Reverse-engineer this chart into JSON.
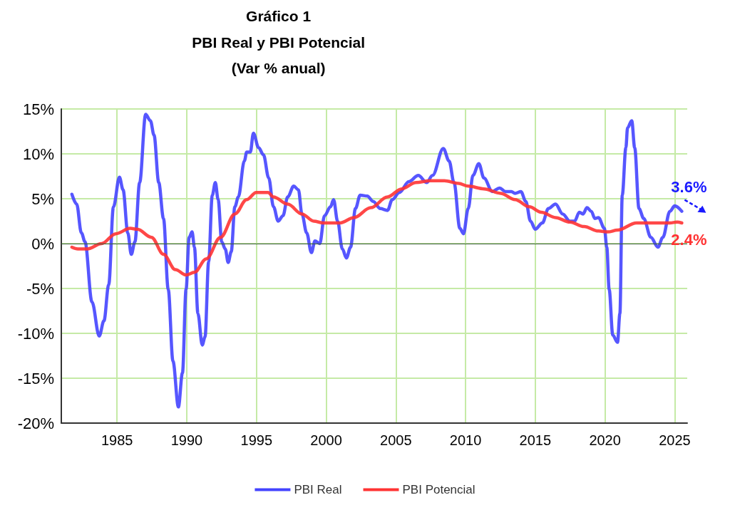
{
  "chart_data": {
    "type": "line",
    "title": "Gráfico 1",
    "subtitle": "PBI Real y PBI Potencial\n(Var % anual)",
    "series": [
      {
        "name": "PBI Real",
        "color": "#4444ff",
        "x": [
          1981.76,
          1982.1,
          1982.44,
          1982.7,
          1983.2,
          1983.72,
          1984.06,
          1984.4,
          1984.74,
          1985.17,
          1985.43,
          1985.77,
          1986.02,
          1986.28,
          1986.62,
          1987.05,
          1987.39,
          1987.65,
          1987.99,
          1988.33,
          1988.67,
          1989.01,
          1989.4,
          1989.69,
          1989.95,
          1990.17,
          1990.38,
          1990.55,
          1990.8,
          1991.11,
          1991.31,
          1991.57,
          1991.83,
          1992.05,
          1992.25,
          1992.51,
          1992.76,
          1992.97,
          1993.19,
          1993.45,
          1993.7,
          1994.13,
          1994.3,
          1994.56,
          1994.78,
          1995.15,
          1995.5,
          1995.88,
          1996.22,
          1996.56,
          1996.9,
          1997.24,
          1997.67,
          1998.01,
          1998.26,
          1998.6,
          1998.94,
          1999.2,
          1999.54,
          1999.88,
          2000.31,
          2000.53,
          2000.82,
          2001.16,
          2001.45,
          2001.75,
          2002.1,
          2002.44,
          2002.95,
          2003.37,
          2003.88,
          2004.4,
          2004.74,
          2005.25,
          2005.93,
          2006.61,
          2007.21,
          2007.63,
          2008.4,
          2008.82,
          2009.17,
          2009.59,
          2009.85,
          2010.19,
          2010.53,
          2010.95,
          2011.32,
          2011.92,
          2012.44,
          2012.86,
          2013.29,
          2013.55,
          2013.97,
          2014.32,
          2014.66,
          2015.0,
          2015.51,
          2015.94,
          2016.45,
          2016.97,
          2017.48,
          2017.82,
          2018.16,
          2018.42,
          2018.71,
          2019.02,
          2019.27,
          2019.53,
          2019.96,
          2020.13,
          2020.3,
          2020.56,
          2020.9,
          2021.07,
          2021.24,
          2021.5,
          2021.62,
          2021.92,
          2022.13,
          2022.44,
          2022.78,
          2023.29,
          2023.8,
          2024.15,
          2024.66,
          2025.0,
          2025.51
        ],
        "values": [
          5.5,
          4.4,
          1.2,
          0.2,
          -6.5,
          -10.3,
          -8.6,
          -4.6,
          4.1,
          7.4,
          6.0,
          1.2,
          -1.2,
          0.2,
          6.8,
          14.4,
          13.7,
          12.1,
          6.8,
          2.8,
          -5.1,
          -13.1,
          -18.2,
          -14.4,
          -5.1,
          0.7,
          1.3,
          -0.4,
          -7.8,
          -11.3,
          -10.4,
          -2.0,
          5.4,
          6.8,
          4.9,
          0.2,
          -0.6,
          -2.1,
          -0.9,
          4.1,
          5.2,
          9.2,
          10.2,
          10.2,
          12.3,
          10.7,
          9.9,
          7.3,
          4.1,
          2.5,
          3.1,
          5.2,
          6.4,
          6.0,
          3.3,
          1.2,
          -1.0,
          0.3,
          0.0,
          3.1,
          4.1,
          4.9,
          2.5,
          -0.6,
          -1.6,
          -0.4,
          3.9,
          5.4,
          5.3,
          4.7,
          3.9,
          3.7,
          4.9,
          5.7,
          6.9,
          7.6,
          6.8,
          7.6,
          10.6,
          9.2,
          6.8,
          1.7,
          1.1,
          3.9,
          7.6,
          8.9,
          7.3,
          5.8,
          6.2,
          5.8,
          5.8,
          5.6,
          5.8,
          4.7,
          2.5,
          1.6,
          2.3,
          3.9,
          4.4,
          3.3,
          2.5,
          2.5,
          3.5,
          3.3,
          4.0,
          3.6,
          2.8,
          2.9,
          1.7,
          -0.4,
          -5.1,
          -10.2,
          -11.0,
          -7.8,
          5.4,
          10.7,
          12.9,
          13.7,
          10.7,
          3.9,
          2.8,
          0.7,
          -0.4,
          0.7,
          3.6,
          4.2,
          3.6
        ]
      },
      {
        "name": "PBI Potencial",
        "color": "#ff3333",
        "x": [
          1981.76,
          1982.18,
          1982.87,
          1983.89,
          1984.91,
          1985.94,
          1986.45,
          1987.47,
          1988.33,
          1989.18,
          1989.95,
          1990.55,
          1991.4,
          1992.42,
          1993.45,
          1994.3,
          1994.98,
          1995.83,
          1996.22,
          1997.24,
          1998.26,
          1999.11,
          1999.8,
          2000.99,
          2002.0,
          2003.2,
          2004.4,
          2005.42,
          2006.44,
          2007.46,
          2008.48,
          2009.51,
          2010.19,
          2011.32,
          2012.52,
          2013.55,
          2014.57,
          2015.43,
          2016.45,
          2017.48,
          2018.5,
          2019.53,
          2020.21,
          2020.9,
          2022.26,
          2023.29,
          2024.66,
          2025.17,
          2025.51
        ],
        "values": [
          -0.4,
          -0.6,
          -0.6,
          0.0,
          1.1,
          1.7,
          1.6,
          0.7,
          -1.2,
          -2.9,
          -3.5,
          -3.2,
          -1.7,
          0.7,
          3.3,
          4.9,
          5.7,
          5.7,
          5.2,
          4.4,
          3.3,
          2.5,
          2.3,
          2.3,
          2.9,
          4.0,
          5.2,
          6.1,
          6.8,
          7.0,
          7.0,
          6.7,
          6.4,
          6.1,
          5.6,
          4.9,
          4.1,
          3.5,
          2.9,
          2.4,
          1.9,
          1.4,
          1.3,
          1.5,
          2.3,
          2.3,
          2.3,
          2.4,
          2.3
        ]
      }
    ],
    "xlim": [
      1981,
      2025.9
    ],
    "xticks": [
      1985,
      1990,
      1995,
      2000,
      2005,
      2010,
      2015,
      2020,
      2025
    ],
    "ylim": [
      -20,
      15
    ],
    "yticks": [
      {
        "value": -20,
        "label": "-20%"
      },
      {
        "value": -15,
        "label": "-15%"
      },
      {
        "value": -10,
        "label": "-10%"
      },
      {
        "value": -5,
        "label": "-5%"
      },
      {
        "value": 0,
        "label": "0%"
      },
      {
        "value": 5,
        "label": "5%"
      },
      {
        "value": 10,
        "label": "10%"
      },
      {
        "value": 15,
        "label": "15%"
      }
    ],
    "grid": true,
    "legend": "bottom",
    "marker": "none",
    "line_style": "solid",
    "ref_lines": [
      {
        "axis": "y",
        "value": 0,
        "label": null,
        "color": "#3a5a3a"
      }
    ],
    "annotations": [
      {
        "text": "3.6%",
        "x": 2025.51,
        "y": 3.6
      },
      {
        "text": "2.4%",
        "x": 2025.51,
        "y": 2.3
      }
    ]
  }
}
